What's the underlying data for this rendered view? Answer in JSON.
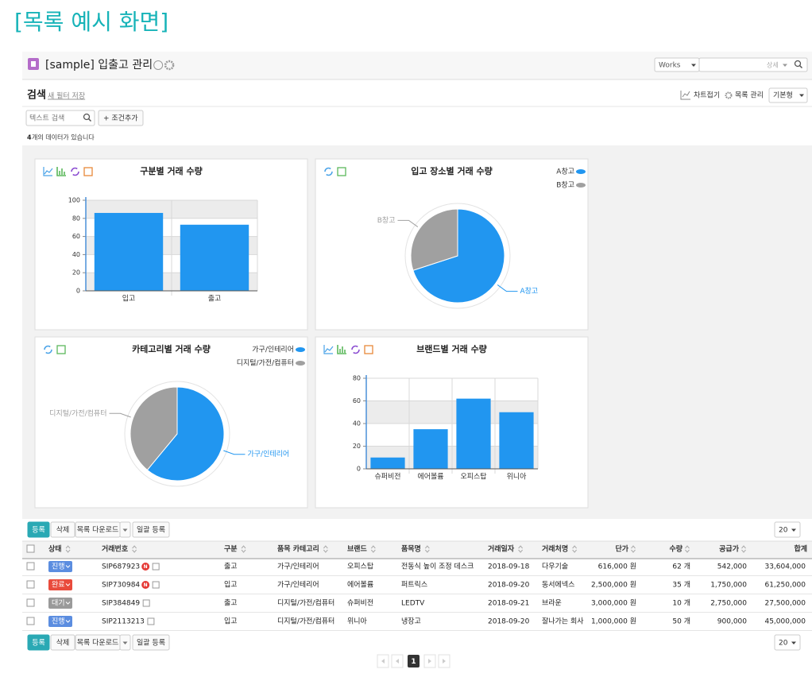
{
  "page_title": "[목록 예시 화면]",
  "header": {
    "title": "[sample] 입출고 관리",
    "app_select": "Works",
    "search_select": "상세"
  },
  "search_bar": {
    "label": "검색",
    "save_filter": "새 필터 저장",
    "fold_chart": "차트접기",
    "list_manage": "목록 관리",
    "view_select": "기본형",
    "text_search": "텍스트 검색",
    "add_condition": "+ 조건추가",
    "count": "4",
    "count_text": "개의 데이터가 있습니다"
  },
  "chart_data": [
    {
      "type": "bar",
      "title": "구분별 거래 수량",
      "categories": [
        "입고",
        "출고"
      ],
      "values": [
        86,
        73
      ],
      "color": "#2196f0",
      "ylim": [
        0,
        100
      ],
      "yticks": [
        0,
        20,
        40,
        60,
        80,
        100
      ],
      "grid": true
    },
    {
      "type": "pie",
      "title": "입고 장소별 거래 수량",
      "categories": [
        "A창고",
        "B창고"
      ],
      "values": [
        70,
        30
      ],
      "colors": [
        "#2196f0",
        "#a0a0a0"
      ],
      "legend": "top-right"
    },
    {
      "type": "pie",
      "title": "카테고리별 거래 수량",
      "categories": [
        "가구/인테리어",
        "디지털/가전/컴퓨터"
      ],
      "values": [
        61,
        39
      ],
      "colors": [
        "#2196f0",
        "#a0a0a0"
      ],
      "legend": "top-right"
    },
    {
      "type": "bar",
      "title": "브랜드별 거래 수량",
      "categories": [
        "슈퍼비전",
        "에어볼륨",
        "오피스탑",
        "위니아"
      ],
      "values": [
        10,
        35,
        62,
        50
      ],
      "color": "#2196f0",
      "ylim": [
        0,
        80
      ],
      "yticks": [
        0,
        20,
        40,
        60,
        80
      ],
      "grid": true
    }
  ],
  "toolbar": {
    "register": "등록",
    "delete": "삭제",
    "download": "목록 다운로드",
    "bulk_register": "일괄 등록",
    "page_size": "20"
  },
  "table": {
    "columns": [
      "상태",
      "거래번호",
      "구분",
      "품목 카테고리",
      "브랜드",
      "품목명",
      "거래일자",
      "거래처명",
      "단가",
      "수량",
      "공급가",
      "합계"
    ],
    "rows": [
      {
        "status_color": "#5b8de0",
        "badge": "N",
        "cells": [
          "진행",
          "SIP687923",
          "출고",
          "가구/인테리어",
          "오피스탑",
          "전동식 높이 조정 데스크",
          "2018-09-18",
          "다우기술",
          "616,000 원",
          "62 개",
          "542,000",
          "33,604,000"
        ]
      },
      {
        "status_color": "#e94b3c",
        "badge": "N",
        "cells": [
          "완료",
          "SIP730984",
          "입고",
          "가구/인테리어",
          "에어볼륨",
          "퍼트릭스",
          "2018-09-20",
          "동서에넥스",
          "2,500,000 원",
          "35 개",
          "1,750,000",
          "61,250,000"
        ]
      },
      {
        "status_color": "#9a9a9a",
        "cells": [
          "대기",
          "SIP384849",
          "출고",
          "디지털/가전/컴퓨터",
          "슈퍼비전",
          "LEDTV",
          "2018-09-21",
          "브라운",
          "3,000,000 원",
          "10 개",
          "2,750,000",
          "27,500,000"
        ]
      },
      {
        "status_color": "#5b8de0",
        "cells": [
          "진행",
          "SIP2113213",
          "입고",
          "디지털/가전/컴퓨터",
          "위니아",
          "냉장고",
          "2018-09-20",
          "잘나가는 회사",
          "1,000,000 원",
          "50 개",
          "900,000",
          "45,000,000"
        ]
      }
    ]
  },
  "pagination": {
    "current": "1"
  }
}
